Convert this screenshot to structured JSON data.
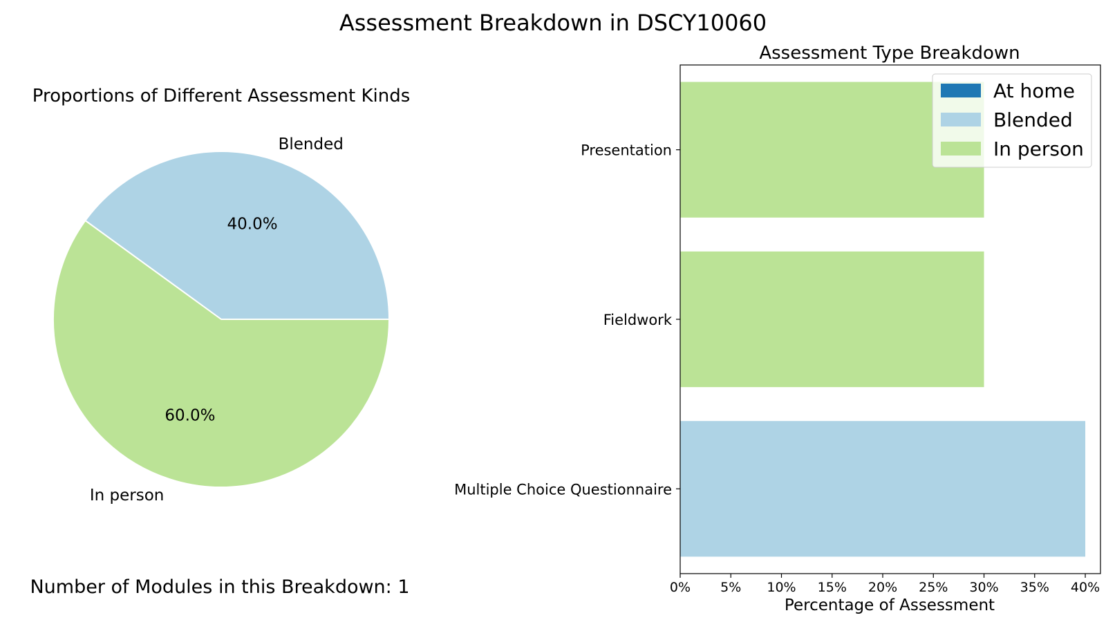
{
  "figure": {
    "suptitle": "Assessment Breakdown in DSCY10060",
    "footnote": "Number of Modules in this Breakdown: 1"
  },
  "colors": {
    "At home": "#1f78b4",
    "Blended": "#aed3e5",
    "In person": "#bbe396"
  },
  "chart_data": [
    {
      "type": "pie",
      "title": "Proportions of Different Assessment Kinds",
      "slices": [
        {
          "label": "Blended",
          "value": 40.0,
          "pct_label": "40.0%"
        },
        {
          "label": "In person",
          "value": 60.0,
          "pct_label": "60.0%"
        }
      ],
      "start_angle": 0,
      "direction": "counterclockwise"
    },
    {
      "type": "bar",
      "orientation": "horizontal",
      "title": "Assessment Type Breakdown",
      "xlabel": "Percentage of Assessment",
      "ylabel": "",
      "xlim": [
        0,
        41.5
      ],
      "xticks": [
        0,
        5,
        10,
        15,
        20,
        25,
        30,
        35,
        40
      ],
      "xtick_labels": [
        "0%",
        "5%",
        "10%",
        "15%",
        "20%",
        "25%",
        "30%",
        "35%",
        "40%"
      ],
      "categories": [
        "Presentation",
        "Fieldwork",
        "Multiple Choice Questionnaire"
      ],
      "bars": [
        {
          "category": "Presentation",
          "value": 30,
          "series": "In person"
        },
        {
          "category": "Fieldwork",
          "value": 30,
          "series": "In person"
        },
        {
          "category": "Multiple Choice Questionnaire",
          "value": 40,
          "series": "Blended"
        }
      ],
      "legend": {
        "placement": "top-right",
        "entries": [
          "At home",
          "Blended",
          "In person"
        ]
      },
      "grid": false
    }
  ]
}
